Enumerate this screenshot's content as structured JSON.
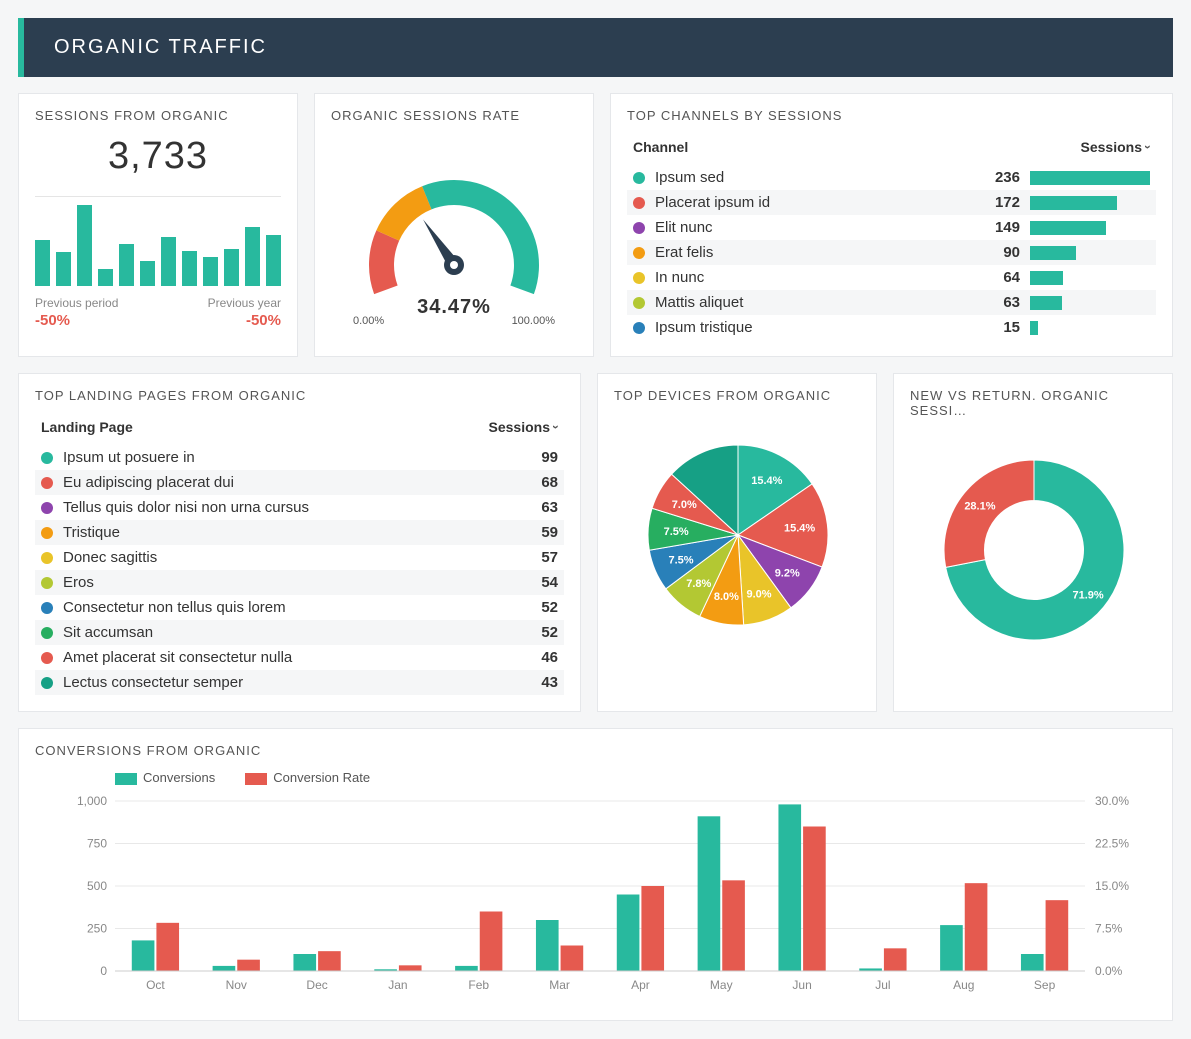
{
  "header": {
    "title": "ORGANIC TRAFFIC"
  },
  "palette": {
    "teal": "#28b99e",
    "red": "#e55a4f",
    "orange": "#f39c12",
    "yellow": "#e9c429",
    "lime": "#b3c833",
    "blue": "#2980b9",
    "green": "#27ae60",
    "purple": "#8e44ad",
    "tealblue": "#16a085",
    "gray_text": "#555555",
    "card_border": "#e5e7ea",
    "bg": "#f5f6f7"
  },
  "sessions_card": {
    "title": "SESSIONS FROM ORGANIC",
    "value": "3,733",
    "mini_bars": [
      55,
      40,
      96,
      20,
      50,
      30,
      58,
      42,
      34,
      44,
      70,
      60
    ],
    "mini_bar_color": "#28b99e",
    "prev_period_label": "Previous period",
    "prev_period_delta": "-50%",
    "prev_year_label": "Previous year",
    "prev_year_delta": "-50%"
  },
  "gauge_card": {
    "title": "ORGANIC SESSIONS RATE",
    "value_pct": 34.47,
    "value_label": "34.47%",
    "min_label": "0.00%",
    "max_label": "100.00%",
    "segments": [
      {
        "color": "#e55a4f",
        "from": 0,
        "to": 20
      },
      {
        "color": "#f39c12",
        "from": 20,
        "to": 40
      },
      {
        "color": "#28b99e",
        "from": 40,
        "to": 100
      }
    ],
    "needle_color": "#2c3e50"
  },
  "channels_card": {
    "title": "TOP CHANNELS BY SESSIONS",
    "col_channel": "Channel",
    "col_sessions": "Sessions",
    "max_bar": 236,
    "rows": [
      {
        "color": "#28b99e",
        "label": "Ipsum sed",
        "value": 236
      },
      {
        "color": "#e55a4f",
        "label": "Placerat ipsum id",
        "value": 172
      },
      {
        "color": "#8e44ad",
        "label": "Elit nunc",
        "value": 149
      },
      {
        "color": "#f39c12",
        "label": "Erat felis",
        "value": 90
      },
      {
        "color": "#e9c429",
        "label": "In nunc",
        "value": 64
      },
      {
        "color": "#b3c833",
        "label": "Mattis aliquet",
        "value": 63
      },
      {
        "color": "#2980b9",
        "label": "Ipsum tristique",
        "value": 15
      }
    ]
  },
  "landing_card": {
    "title": "TOP LANDING PAGES FROM ORGANIC",
    "col_page": "Landing Page",
    "col_sessions": "Sessions",
    "rows": [
      {
        "color": "#28b99e",
        "label": "Ipsum ut posuere in",
        "value": 99
      },
      {
        "color": "#e55a4f",
        "label": "Eu adipiscing placerat dui",
        "value": 68
      },
      {
        "color": "#8e44ad",
        "label": "Tellus quis dolor nisi non urna cursus",
        "value": 63
      },
      {
        "color": "#f39c12",
        "label": "Tristique",
        "value": 59
      },
      {
        "color": "#e9c429",
        "label": "Donec sagittis",
        "value": 57
      },
      {
        "color": "#b3c833",
        "label": "Eros",
        "value": 54
      },
      {
        "color": "#2980b9",
        "label": "Consectetur non tellus quis lorem",
        "value": 52
      },
      {
        "color": "#27ae60",
        "label": "Sit accumsan",
        "value": 52
      },
      {
        "color": "#e55a4f",
        "label": "Amet placerat sit consectetur nulla",
        "value": 46
      },
      {
        "color": "#16a085",
        "label": "Lectus consectetur semper",
        "value": 43
      }
    ]
  },
  "devices_card": {
    "title": "TOP DEVICES FROM ORGANIC",
    "type": "pie",
    "slices": [
      {
        "color": "#28b99e",
        "pct": 15.4,
        "label": "15.4%"
      },
      {
        "color": "#e55a4f",
        "pct": 15.4,
        "label": "15.4%"
      },
      {
        "color": "#8e44ad",
        "pct": 9.2,
        "label": "9.2%"
      },
      {
        "color": "#e9c429",
        "pct": 9.0,
        "label": "9.0%"
      },
      {
        "color": "#f39c12",
        "pct": 8.0,
        "label": "8.0%"
      },
      {
        "color": "#b3c833",
        "pct": 7.8,
        "label": "7.8%"
      },
      {
        "color": "#2980b9",
        "pct": 7.5,
        "label": "7.5%"
      },
      {
        "color": "#27ae60",
        "pct": 7.5,
        "label": "7.5%"
      },
      {
        "color": "#e55a4f",
        "pct": 7.0,
        "label": "7.0%"
      },
      {
        "color": "#16a085",
        "pct": 13.2,
        "label": ""
      }
    ]
  },
  "new_vs_return_card": {
    "title": "NEW VS RETURN. ORGANIC SESSI…",
    "type": "donut",
    "slices": [
      {
        "color": "#28b99e",
        "pct": 71.9,
        "label": "71.9%"
      },
      {
        "color": "#e55a4f",
        "pct": 28.1,
        "label": "28.1%"
      }
    ],
    "inner_radius_ratio": 0.55
  },
  "conversions_card": {
    "title": "CONVERSIONS FROM ORGANIC",
    "legend": [
      {
        "color": "#28b99e",
        "label": "Conversions"
      },
      {
        "color": "#e55a4f",
        "label": "Conversion Rate"
      }
    ],
    "categories": [
      "Oct",
      "Nov",
      "Dec",
      "Jan",
      "Feb",
      "Mar",
      "Apr",
      "May",
      "Jun",
      "Jul",
      "Aug",
      "Sep"
    ],
    "left_axis": {
      "min": 0,
      "max": 1000,
      "ticks": [
        0,
        250,
        500,
        750,
        1000
      ]
    },
    "right_axis": {
      "min": 0,
      "max": 30,
      "ticks": [
        "0.0%",
        "7.5%",
        "15.0%",
        "22.5%",
        "30.0%"
      ]
    },
    "series_conversions": [
      180,
      30,
      100,
      10,
      30,
      300,
      450,
      910,
      980,
      15,
      270,
      100
    ],
    "series_rate_pct": [
      8.5,
      2.0,
      3.5,
      1.0,
      10.5,
      4.5,
      15.0,
      16.0,
      25.5,
      4.0,
      15.5,
      12.5
    ],
    "bar_colors": {
      "conv": "#28b99e",
      "rate": "#e55a4f"
    }
  }
}
